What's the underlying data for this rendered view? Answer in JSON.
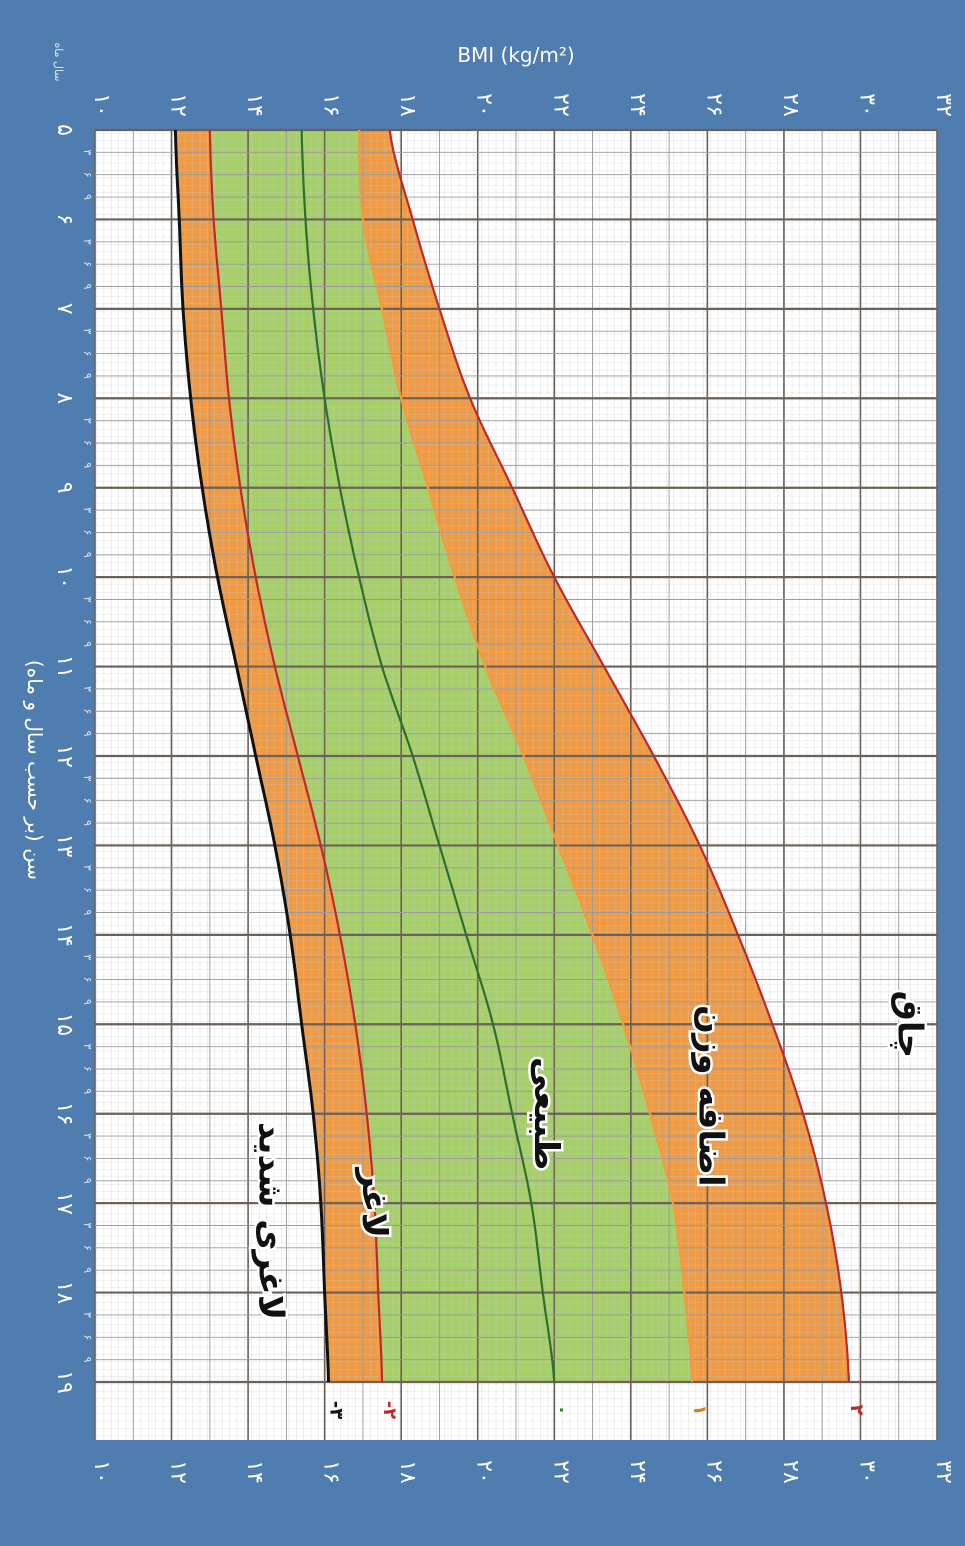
{
  "chart_data": {
    "type": "line",
    "title": "",
    "ylabel": "BMI (kg/m²)",
    "xlabel": "سن (بر حسب سال و ماه)",
    "xunit_label": "سال ماه",
    "ylim": [
      10,
      32
    ],
    "xlim": [
      5,
      19
    ],
    "yticks": [
      10,
      12,
      14,
      16,
      18,
      20,
      22,
      24,
      26,
      28,
      30,
      32
    ],
    "ytick_labels": [
      "۱۰",
      "۱۲",
      "۱۴",
      "۱۶",
      "۱۸",
      "۲۰",
      "۲۲",
      "۲۴",
      "۲۶",
      "۲۸",
      "۳۰",
      "۳۲"
    ],
    "xticks": [
      5,
      6,
      7,
      8,
      9,
      10,
      11,
      12,
      13,
      14,
      15,
      16,
      17,
      18,
      19
    ],
    "xtick_labels": [
      "۵",
      "۶",
      "۷",
      "۸",
      "۹",
      "۱۰",
      "۱۱",
      "۱۲",
      "۱۳",
      "۱۴",
      "۱۵",
      "۱۶",
      "۱۷",
      "۱۸",
      "۱۹"
    ],
    "month_labels": [
      "۳",
      "۶",
      "۹"
    ],
    "grid": true,
    "x": [
      5,
      6,
      7,
      8,
      9,
      10,
      11,
      12,
      13,
      14,
      15,
      16,
      17,
      18,
      19
    ],
    "series": [
      {
        "name": "-۳",
        "label_color": "#111111",
        "line_color": "#111111",
        "values": [
          12.1,
          12.2,
          12.3,
          12.5,
          12.8,
          13.2,
          13.7,
          14.2,
          14.7,
          15.1,
          15.4,
          15.7,
          15.9,
          16.0,
          16.1
        ]
      },
      {
        "name": "-۲",
        "label_color": "#c0282a",
        "line_color": "#c0282a",
        "values": [
          13.0,
          13.1,
          13.3,
          13.5,
          13.8,
          14.2,
          14.7,
          15.3,
          15.9,
          16.4,
          16.8,
          17.1,
          17.3,
          17.4,
          17.5
        ]
      },
      {
        "name": "۰",
        "label_color": "#2a8a2a",
        "line_color": "#2e6e2e",
        "values": [
          15.4,
          15.5,
          15.7,
          16.0,
          16.4,
          16.9,
          17.5,
          18.3,
          19.0,
          19.7,
          20.4,
          20.9,
          21.4,
          21.7,
          22.0
        ]
      },
      {
        "name": "۱",
        "label_color": "#e07a1f",
        "line_color": "#f39a3a",
        "values": [
          16.9,
          17.0,
          17.5,
          18.0,
          18.7,
          19.4,
          20.2,
          21.2,
          22.1,
          23.0,
          23.8,
          24.5,
          25.1,
          25.4,
          25.6
        ]
      },
      {
        "name": "۲",
        "label_color": "#c0282a",
        "line_color": "#c0282a",
        "values": [
          17.7,
          18.3,
          19.0,
          19.8,
          20.9,
          22.0,
          23.3,
          24.6,
          25.8,
          26.8,
          27.7,
          28.5,
          29.1,
          29.5,
          29.7
        ]
      }
    ],
    "zones": [
      "لاغری شدید",
      "لاغر",
      "طبیعی",
      "اضافه وزن",
      "چاق"
    ],
    "colors": {
      "background": "#4f7db0",
      "plot": "#ffffff",
      "orange": "#ef9a45",
      "green": "#a6cf6a",
      "major_grid": "#6b6158",
      "minor_grid": "#9a9a9a"
    }
  }
}
